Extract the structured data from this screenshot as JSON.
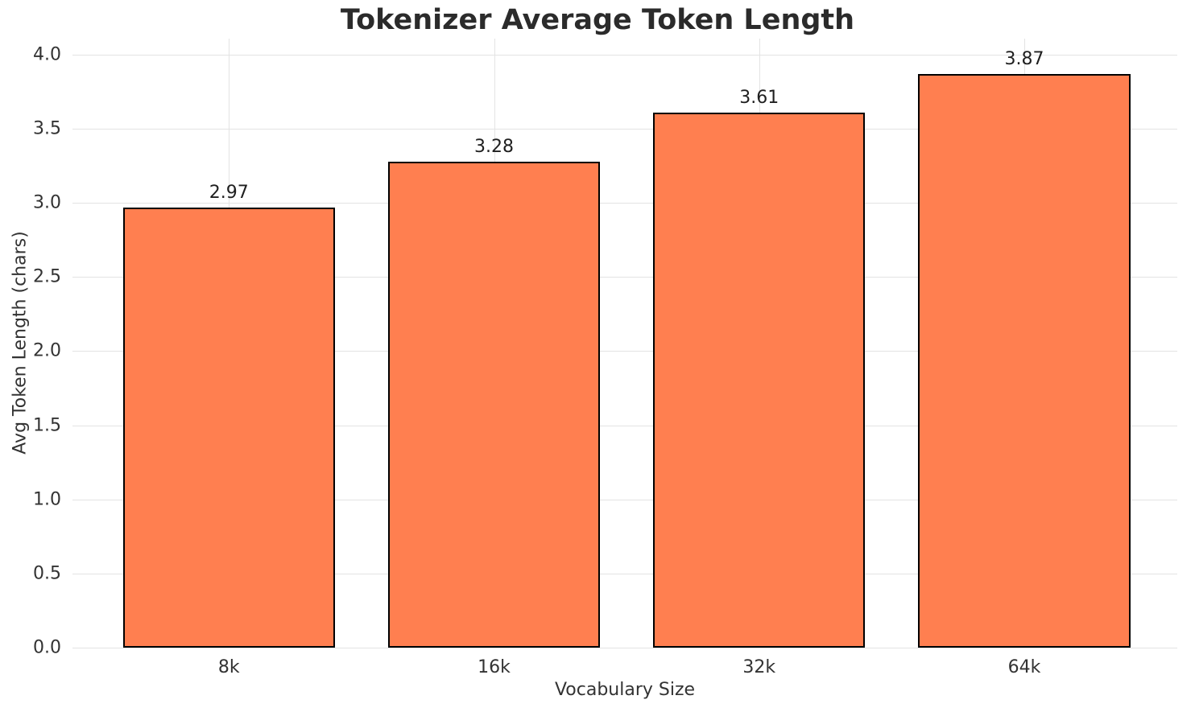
{
  "chart_data": {
    "type": "bar",
    "title": "Tokenizer Average Token Length",
    "xlabel": "Vocabulary Size",
    "ylabel": "Avg Token Length (chars)",
    "categories": [
      "8k",
      "16k",
      "32k",
      "64k"
    ],
    "values": [
      2.97,
      3.28,
      3.61,
      3.87
    ],
    "value_labels": [
      "2.97",
      "3.28",
      "3.61",
      "3.87"
    ],
    "yticks": [
      0.0,
      0.5,
      1.0,
      1.5,
      2.0,
      2.5,
      3.0,
      3.5,
      4.0
    ],
    "ytick_labels": [
      "0.0",
      "0.5",
      "1.0",
      "1.5",
      "2.0",
      "2.5",
      "3.0",
      "3.5",
      "4.0"
    ],
    "ylim": [
      0,
      4.108
    ],
    "grid": true,
    "legend": "none",
    "bar_color": "#FF7F50",
    "bar_edge_color": "#000000",
    "grid_color": "#e3e3e3",
    "title_color": "#2b2b2b",
    "tick_color": "#333333"
  }
}
